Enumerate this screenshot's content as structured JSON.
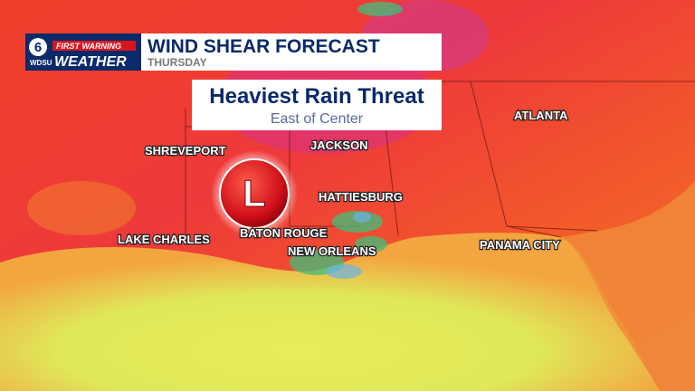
{
  "header": {
    "logo_number": "6",
    "logo_station": "WDSU",
    "logo_top": "FIRST WARNING",
    "logo_bottom": "WEATHER",
    "title": "WIND SHEAR FORECAST",
    "subtitle": "THURSDAY"
  },
  "callout": {
    "title": "Heaviest Rain Threat",
    "subtitle": "East of Center"
  },
  "low_marker": "L",
  "cities": [
    "SHREVEPORT",
    "JACKSON",
    "ATLANTA",
    "HATTIESBURG",
    "LAKE CHARLES",
    "BATON ROUGE",
    "NEW ORLEANS",
    "PANAMA CITY"
  ]
}
